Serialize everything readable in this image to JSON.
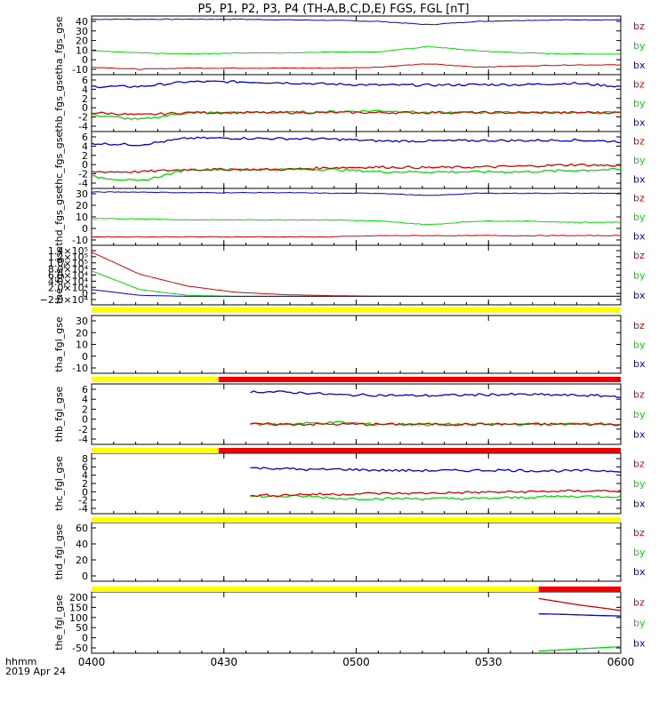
{
  "title": "P5, P1, P2, P3, P4 (TH-A,B,C,D,E) FGS, FGL [nT]",
  "footer": {
    "label1": "hhmm",
    "label2": "2019 Apr 24"
  },
  "x_tick_labels": [
    "0400",
    "0430",
    "0500",
    "0530",
    "0600"
  ],
  "colors": {
    "bz": "#dd0000",
    "by": "#00dd00",
    "bx": "#0000dd",
    "bar_yellow": "#ffff00",
    "bar_red": "#ee0000"
  },
  "chart_data": [
    {
      "type": "line",
      "ylabel": "tha_fgs_gse",
      "ylim": [
        -12,
        42
      ],
      "y_tick_labels": [
        "40",
        "30",
        "20",
        "10",
        "0",
        "-10"
      ],
      "legend": [
        "bz",
        "by",
        "bx"
      ],
      "series": [
        {
          "name": "bx",
          "values": [
            39,
            39,
            39,
            39,
            38.5,
            38,
            37,
            34,
            37,
            38,
            38.5,
            38.5
          ]
        },
        {
          "name": "by",
          "values": [
            10,
            8,
            7,
            8,
            8,
            9,
            9,
            14,
            10,
            8,
            7,
            7
          ]
        },
        {
          "name": "bz",
          "values": [
            -5,
            -7,
            -6,
            -6,
            -6,
            -6,
            -5,
            -2,
            -5,
            -4,
            -3,
            -3
          ]
        }
      ]
    },
    {
      "type": "line",
      "ylabel": "thb_fgs_gse",
      "ylim": [
        -5,
        7
      ],
      "y_tick_labels": [
        "6",
        "4",
        "2",
        "0",
        "-2",
        "-4"
      ],
      "legend": [
        "bz",
        "by",
        "bx"
      ],
      "series": [
        {
          "name": "bx",
          "values": [
            4.5,
            4.5,
            5.5,
            5.5,
            5.3,
            5,
            4.8,
            4.8,
            4.9,
            4.9,
            5.2,
            4.5
          ]
        },
        {
          "name": "by",
          "values": [
            -1.5,
            -2.5,
            -1,
            -1,
            -1,
            -0.8,
            -0.6,
            -1,
            -1,
            -1,
            -1,
            -1
          ]
        },
        {
          "name": "bz",
          "values": [
            -1,
            -1.5,
            -1,
            -1,
            -1,
            -1,
            -1,
            -1,
            -1,
            -1,
            -1,
            -1
          ]
        }
      ]
    },
    {
      "type": "line",
      "ylabel": "thc_fgs_gse",
      "ylim": [
        -5,
        7
      ],
      "y_tick_labels": [
        "6",
        "4",
        "2",
        "0",
        "-2",
        "-4"
      ],
      "legend": [
        "bz",
        "by",
        "bx"
      ],
      "series": [
        {
          "name": "bx",
          "values": [
            4.5,
            4.2,
            5.6,
            5.6,
            5.5,
            5.4,
            5,
            5,
            5.1,
            5.1,
            5.2,
            4.9
          ]
        },
        {
          "name": "by",
          "values": [
            -2.5,
            -3.5,
            -1,
            -1,
            -1,
            -1,
            -1.5,
            -1.5,
            -1.5,
            -1.5,
            -1.2,
            -1
          ]
        },
        {
          "name": "bz",
          "values": [
            -1.5,
            -1.5,
            -1,
            -1,
            -1,
            -0.6,
            -0.5,
            -0.6,
            -0.5,
            -0.3,
            0,
            -0.2
          ]
        }
      ]
    },
    {
      "type": "line",
      "ylabel": "thd_fgs_gse",
      "ylim": [
        -15,
        32
      ],
      "y_tick_labels": [
        "30",
        "20",
        "10",
        "0",
        "-10"
      ],
      "legend": [
        "bz",
        "by",
        "bx"
      ],
      "series": [
        {
          "name": "bx",
          "values": [
            29,
            29,
            28.5,
            28.5,
            28.5,
            28,
            28,
            26,
            28,
            28,
            28,
            28
          ]
        },
        {
          "name": "by",
          "values": [
            7,
            7,
            6,
            6,
            6,
            6,
            5,
            2,
            5,
            5,
            4,
            4
          ]
        },
        {
          "name": "bz",
          "values": [
            -8,
            -8,
            -8,
            -8,
            -8,
            -8,
            -7,
            -7,
            -7,
            -7,
            -7,
            -7
          ]
        }
      ]
    },
    {
      "type": "line",
      "ylabel": "the_fgs_gse",
      "ylim": [
        -25000,
        150000
      ],
      "y_tick_labels": [
        "1.4×10⁵",
        "1.2×10⁵",
        "1.0×10⁵",
        "8.0×10⁴",
        "6.0×10⁴",
        "4.0×10⁴",
        "2.0×10⁴",
        "0",
        "−2.0×10⁴"
      ],
      "legend": [
        "bz",
        "by",
        "bx"
      ],
      "series": [
        {
          "name": "bz",
          "values": [
            130000,
            65000,
            30000,
            12000,
            5000,
            2000,
            500,
            0,
            0,
            0,
            0,
            0
          ]
        },
        {
          "name": "by",
          "values": [
            75000,
            20000,
            3000,
            0,
            0,
            0,
            0,
            0,
            0,
            0,
            0,
            0
          ]
        },
        {
          "name": "bx",
          "values": [
            20000,
            3000,
            0,
            0,
            0,
            0,
            0,
            0,
            0,
            0,
            0,
            0
          ]
        }
      ]
    },
    {
      "type": "line",
      "ylabel": "tha_fgl_gse",
      "ylim": [
        -15,
        35
      ],
      "y_tick_labels": [
        "30",
        "20",
        "10",
        "0",
        "-10"
      ],
      "legend": [
        "bz",
        "by",
        "bx"
      ],
      "series": []
    },
    {
      "type": "line",
      "ylabel": "thb_fgl_gse",
      "ylim": [
        -5,
        7
      ],
      "y_tick_labels": [
        "6",
        "4",
        "2",
        "0",
        "-2",
        "-4"
      ],
      "legend": [
        "bz",
        "by",
        "bx"
      ],
      "series": [
        {
          "name": "bx",
          "values": [
            null,
            null,
            null,
            null,
            null,
            5.5,
            5.4,
            5.2,
            4.8,
            4.8,
            4.7,
            4.7,
            4.8,
            4.9,
            4.9,
            4.8,
            4.7,
            4.5
          ]
        },
        {
          "name": "by",
          "values": [
            null,
            null,
            null,
            null,
            null,
            -1,
            -1,
            -0.8,
            -0.6,
            -1,
            -1,
            -1,
            -1,
            -1,
            -1,
            -1,
            -0.8,
            -1
          ]
        },
        {
          "name": "bz",
          "values": [
            null,
            null,
            null,
            null,
            null,
            -1,
            -1,
            -1,
            -1,
            -1,
            -1,
            -1,
            -1,
            -1,
            -1,
            -1,
            -1,
            -1
          ]
        }
      ]
    },
    {
      "type": "line",
      "ylabel": "thc_fgl_gse",
      "ylim": [
        -5,
        9
      ],
      "y_tick_labels": [
        "8",
        "6",
        "4",
        "2",
        "0",
        "-2",
        "-4"
      ],
      "legend": [
        "bz",
        "by",
        "bx"
      ],
      "series": [
        {
          "name": "bx",
          "values": [
            null,
            null,
            null,
            null,
            null,
            5.6,
            5.5,
            5.2,
            5.3,
            5.1,
            5,
            5,
            5,
            5.1,
            5,
            4.9,
            5,
            4.9
          ]
        },
        {
          "name": "by",
          "values": [
            null,
            null,
            null,
            null,
            null,
            -1,
            -1,
            -1,
            -1.5,
            -1.5,
            -1.5,
            -1.5,
            -1.5,
            -1.4,
            -1.2,
            -1,
            -1,
            -1
          ]
        },
        {
          "name": "bz",
          "values": [
            null,
            null,
            null,
            null,
            null,
            -0.8,
            -0.7,
            -0.5,
            -0.5,
            -0.3,
            -0.3,
            -0.2,
            -0.1,
            0,
            0.1,
            0.2,
            0.3,
            0.3
          ]
        }
      ]
    },
    {
      "type": "line",
      "ylabel": "thd_fgl_gse",
      "ylim": [
        -10,
        70
      ],
      "y_tick_labels": [
        "60",
        "40",
        "20",
        "0"
      ],
      "legend": [
        "bz",
        "by",
        "bx"
      ],
      "series": []
    },
    {
      "type": "line",
      "ylabel": "the_fgl_gse",
      "ylim": [
        -60,
        220
      ],
      "y_tick_labels": [
        "200",
        "150",
        "100",
        "50",
        "0",
        "-50"
      ],
      "legend": [
        "bz",
        "by",
        "bx"
      ],
      "series": [
        {
          "name": "bz",
          "x_start": 0.845,
          "values": [
            190,
            175,
            160,
            148,
            135
          ]
        },
        {
          "name": "bx",
          "x_start": 0.845,
          "values": [
            120,
            118,
            115,
            112,
            110
          ]
        },
        {
          "name": "by",
          "x_start": 0.845,
          "values": [
            -50,
            -45,
            -40,
            -35,
            -30
          ]
        }
      ]
    }
  ],
  "status_bars": [
    {
      "name": "tha",
      "red_from": null
    },
    {
      "name": "thb",
      "red_from": 0.24
    },
    {
      "name": "thc",
      "red_from": 0.24
    },
    {
      "name": "thd",
      "red_from": null
    },
    {
      "name": "the",
      "red_from": 0.845
    }
  ]
}
